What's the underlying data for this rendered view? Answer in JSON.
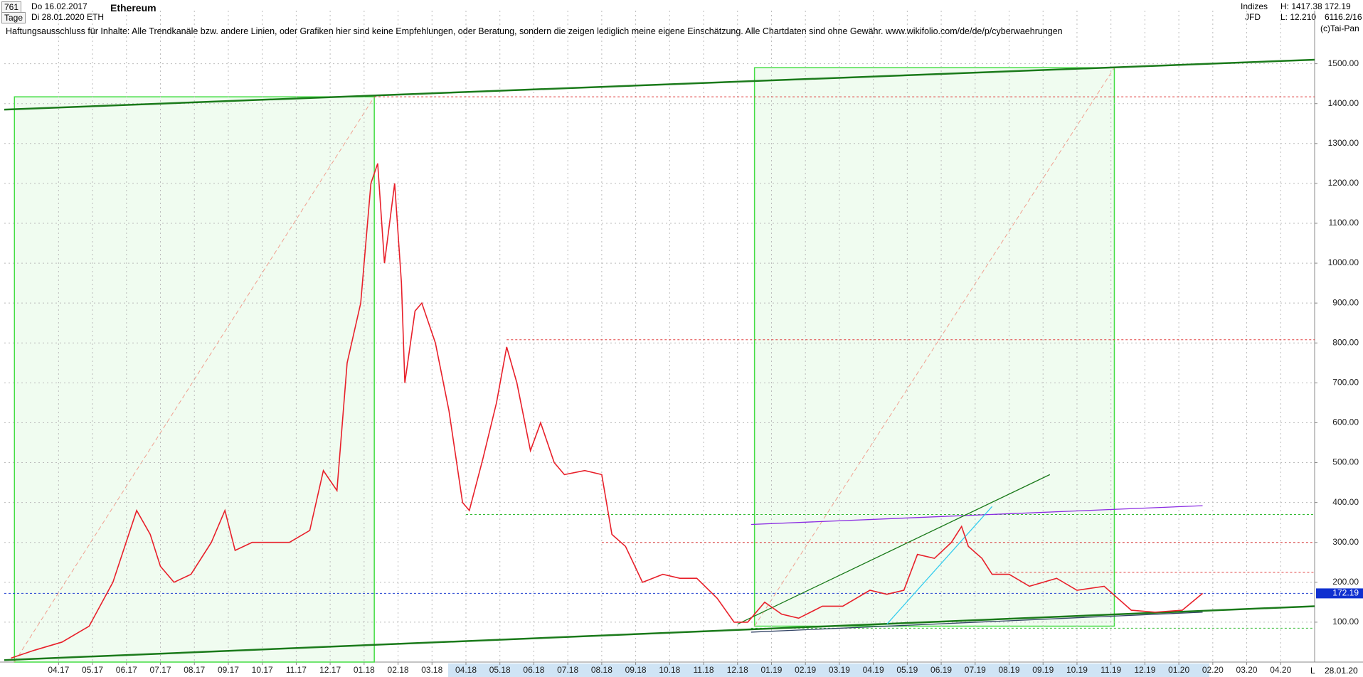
{
  "header": {
    "count": "761",
    "start": "Do 16.02.2017",
    "period": "Tage",
    "end": "Di 28.01.2020",
    "symbol": "ETH",
    "group": "Indizes",
    "broker": "JFD",
    "high": "H: 1417.38",
    "low": "L: 12.210",
    "ratio": "6116.2/16",
    "copyright": "(c)Tai-Pan",
    "bottom_date": "28.01.20",
    "bottom_mode": "L"
  },
  "chart_data": {
    "type": "line",
    "title": "Ethereum",
    "subtitle": "Haftungsausschluss für Inhalte: Alle Trendkanäle bzw. andere Linien, oder Grafiken hier sind keine Empfehlungen, oder Beratung, sondern die zeigen lediglich meine eigene Einschätzung. Alle Chartdaten sind ohne Gewähr.  www.wikifolio.com/de/de/p/cyberwaehrungen",
    "x": [
      0.6,
      1.3,
      2.1,
      2.9,
      3.6,
      4.3,
      4.7,
      5.0,
      5.4,
      5.9,
      6.5,
      6.9,
      7.2,
      7.7,
      8.2,
      8.8,
      9.4,
      9.8,
      10.2,
      10.5,
      10.9,
      11.2,
      11.4,
      11.6,
      11.9,
      12.1,
      12.2,
      12.5,
      12.7,
      13.1,
      13.5,
      13.9,
      14.1,
      14.5,
      14.9,
      15.2,
      15.5,
      15.9,
      16.2,
      16.6,
      16.9,
      17.5,
      18.0,
      18.3,
      18.7,
      19.2,
      19.8,
      20.3,
      20.8,
      21.4,
      21.9,
      22.3,
      22.8,
      23.3,
      23.8,
      24.5,
      25.1,
      25.9,
      26.4,
      26.9,
      27.3,
      27.8,
      28.3,
      28.6,
      28.8,
      29.2,
      29.5,
      30.0,
      30.6,
      31.4,
      32.0,
      32.8,
      33.6,
      34.3,
      35.1,
      35.7
    ],
    "series": [
      {
        "name": "ETH",
        "color": "#e8202a",
        "values": [
          10,
          30,
          50,
          90,
          200,
          380,
          320,
          240,
          200,
          220,
          300,
          380,
          280,
          300,
          300,
          300,
          330,
          480,
          430,
          750,
          900,
          1200,
          1250,
          1000,
          1200,
          950,
          700,
          880,
          900,
          800,
          630,
          400,
          380,
          510,
          650,
          790,
          700,
          530,
          600,
          500,
          470,
          480,
          470,
          320,
          290,
          200,
          220,
          210,
          210,
          160,
          100,
          100,
          150,
          120,
          110,
          140,
          140,
          180,
          170,
          180,
          270,
          260,
          300,
          340,
          290,
          260,
          220,
          220,
          190,
          210,
          180,
          190,
          130,
          125,
          130,
          172.19
        ]
      }
    ],
    "last": 172.19,
    "xlim": [
      0.4,
      39
    ],
    "xticks": [
      {
        "value": 2,
        "label": "04.17"
      },
      {
        "value": 3,
        "label": "05.17"
      },
      {
        "value": 4,
        "label": "06.17"
      },
      {
        "value": 5,
        "label": "07.17"
      },
      {
        "value": 6,
        "label": "08.17"
      },
      {
        "value": 7,
        "label": "09.17"
      },
      {
        "value": 8,
        "label": "10.17"
      },
      {
        "value": 9,
        "label": "11.17"
      },
      {
        "value": 10,
        "label": "12.17"
      },
      {
        "value": 11,
        "label": "01.18"
      },
      {
        "value": 12,
        "label": "02.18"
      },
      {
        "value": 13,
        "label": "03.18"
      },
      {
        "value": 14,
        "label": "04.18"
      },
      {
        "value": 15,
        "label": "05.18"
      },
      {
        "value": 16,
        "label": "06.18"
      },
      {
        "value": 17,
        "label": "07.18"
      },
      {
        "value": 18,
        "label": "08.18"
      },
      {
        "value": 19,
        "label": "09.18"
      },
      {
        "value": 20,
        "label": "10.18"
      },
      {
        "value": 21,
        "label": "11.18"
      },
      {
        "value": 22,
        "label": "12.18"
      },
      {
        "value": 23,
        "label": "01.19"
      },
      {
        "value": 24,
        "label": "02.19"
      },
      {
        "value": 25,
        "label": "03.19"
      },
      {
        "value": 26,
        "label": "04.19"
      },
      {
        "value": 27,
        "label": "05.19"
      },
      {
        "value": 28,
        "label": "06.19"
      },
      {
        "value": 29,
        "label": "07.19"
      },
      {
        "value": 30,
        "label": "08.19"
      },
      {
        "value": 31,
        "label": "09.19"
      },
      {
        "value": 32,
        "label": "10.19"
      },
      {
        "value": 33,
        "label": "11.19"
      },
      {
        "value": 34,
        "label": "12.19"
      },
      {
        "value": 35,
        "label": "01.20"
      },
      {
        "value": 36,
        "label": "02.20"
      },
      {
        "value": 37,
        "label": "03.20"
      },
      {
        "value": 38,
        "label": "04.20"
      }
    ],
    "ylim": [
      0,
      1633
    ],
    "yticks": [
      {
        "value": 100,
        "label": "100.00"
      },
      {
        "value": 200,
        "label": "200.00"
      },
      {
        "value": 300,
        "label": "300.00"
      },
      {
        "value": 400,
        "label": "400.00"
      },
      {
        "value": 500,
        "label": "500.00"
      },
      {
        "value": 600,
        "label": "600.00"
      },
      {
        "value": 700,
        "label": "700.00"
      },
      {
        "value": 800,
        "label": "800.00"
      },
      {
        "value": 900,
        "label": "900.00"
      },
      {
        "value": 1000,
        "label": "1000.00"
      },
      {
        "value": 1100,
        "label": "1100.00"
      },
      {
        "value": 1200,
        "label": "1200.00"
      },
      {
        "value": 1300,
        "label": "1300.00"
      },
      {
        "value": 1400,
        "label": "1400.00"
      },
      {
        "value": 1500,
        "label": "1500.00"
      }
    ],
    "grid": true,
    "boxes": [
      {
        "x": [
          0.7,
          11.3
        ],
        "y": [
          0,
          1417
        ],
        "color": "#44dd44"
      },
      {
        "x": [
          22.5,
          33.1
        ],
        "y": [
          90,
          1490
        ],
        "color": "#44dd44"
      }
    ],
    "hlines": [
      {
        "value": 1417,
        "from": 11.3,
        "color": "#e04040"
      },
      {
        "value": 808,
        "from": 15.2,
        "color": "#e04040"
      },
      {
        "value": 370,
        "from": 14.0,
        "color": "#33bb33"
      },
      {
        "value": 300,
        "from": 18.0,
        "color": "#e04040"
      },
      {
        "value": 225,
        "from": 29.6,
        "color": "#e04040"
      },
      {
        "value": 172.19,
        "from": 0.4,
        "color": "#2040d0"
      },
      {
        "value": 85,
        "from": 22.4,
        "color": "#33bb33"
      }
    ],
    "lines": [
      {
        "x": [
          0.4,
          39
        ],
        "y": [
          5,
          140
        ],
        "color": "#1a7a1a"
      },
      {
        "x": [
          0.4,
          39
        ],
        "y": [
          1385,
          1510
        ],
        "color": "#1a7a1a"
      },
      {
        "x": [
          22.4,
          35.7
        ],
        "y": [
          345,
          392
        ],
        "color": "#8a2be2"
      },
      {
        "x": [
          22.4,
          35.7
        ],
        "y": [
          75,
          125
        ],
        "color": "#334466"
      },
      {
        "x": [
          22.0,
          31.2
        ],
        "y": [
          95,
          470
        ],
        "color": "#1a7a1a"
      },
      {
        "x": [
          26.4,
          29.5
        ],
        "y": [
          95,
          390
        ],
        "color": "#33ccee"
      }
    ]
  }
}
